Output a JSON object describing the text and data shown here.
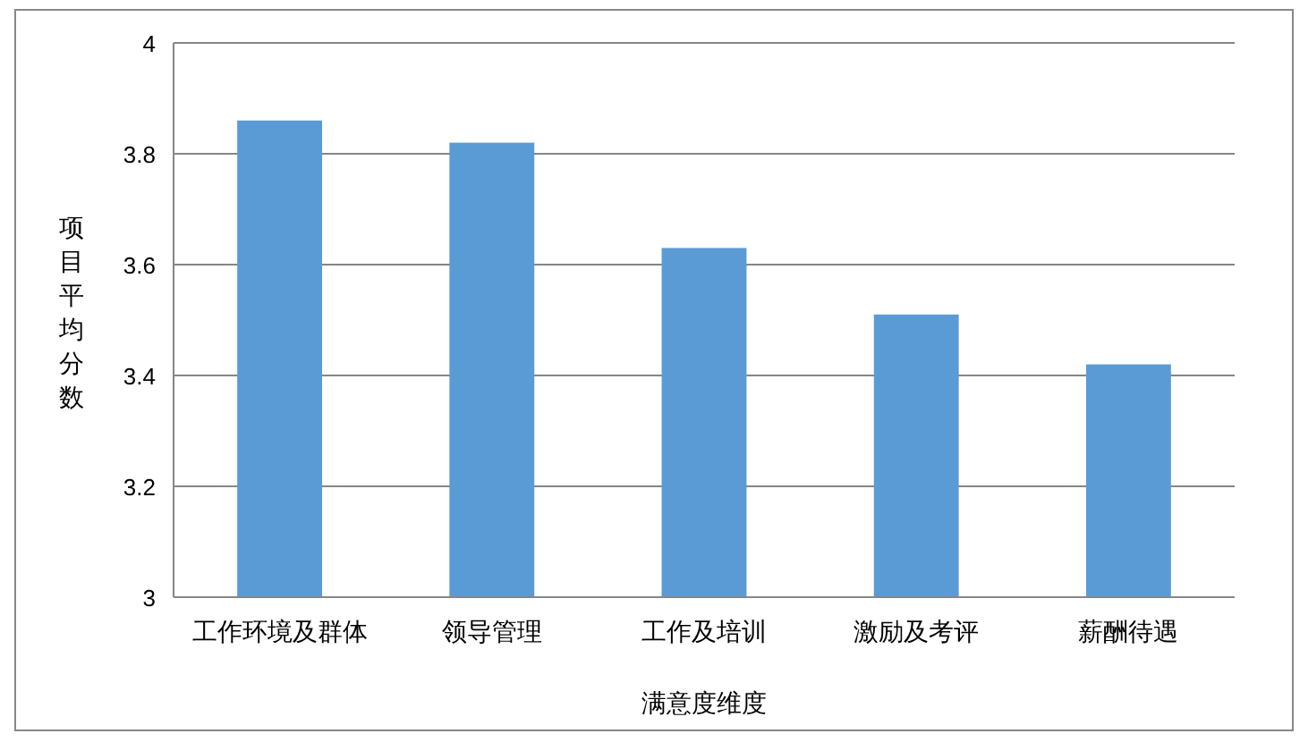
{
  "chart_data": {
    "type": "bar",
    "xlabel": "满意度维度",
    "ylabel": "项目平均分数",
    "categories": [
      "工作环境及群体",
      "领导管理",
      "工作及培训",
      "激励及考评",
      "薪酬待遇"
    ],
    "values": [
      3.86,
      3.82,
      3.63,
      3.51,
      3.42
    ],
    "color": "#5b9bd5",
    "ylim": [
      3,
      4
    ],
    "yticks": [
      3,
      3.2,
      3.4,
      3.6,
      3.8,
      4
    ],
    "grid": "y"
  }
}
